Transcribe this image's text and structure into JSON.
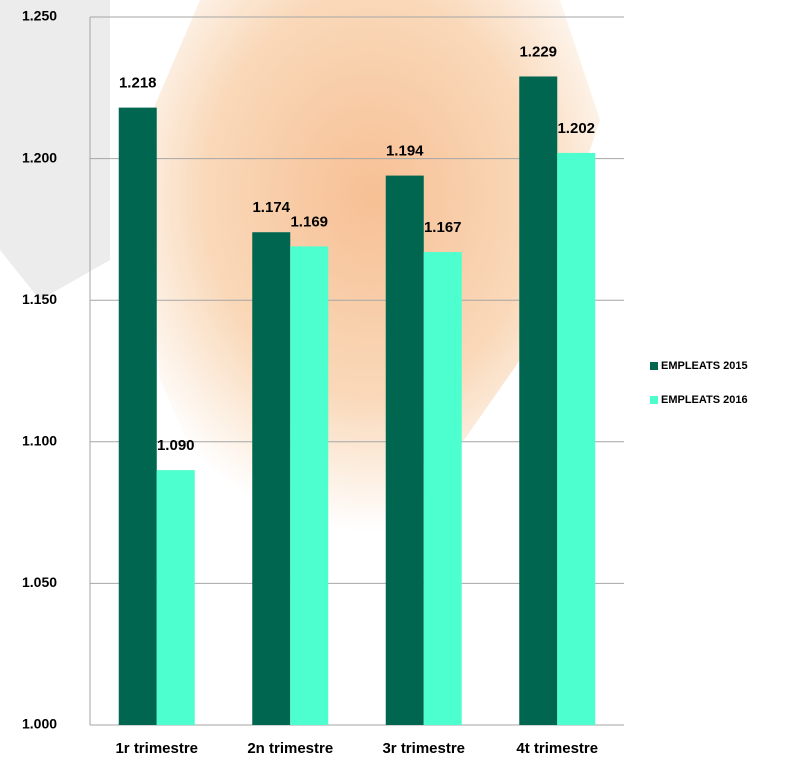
{
  "chart_data": {
    "type": "bar",
    "categories": [
      "1r trimestre",
      "2n trimestre",
      "3r trimestre",
      "4t trimestre"
    ],
    "series": [
      {
        "name": "EMPLEATS 2015",
        "color": "#006650",
        "values": [
          1.218,
          1.174,
          1.194,
          1.229
        ],
        "value_labels": [
          "1.218",
          "1.174",
          "1.194",
          "1.229"
        ]
      },
      {
        "name": "EMPLEATS 2016",
        "color": "#4dffcf",
        "values": [
          1.09,
          1.169,
          1.167,
          1.202
        ],
        "value_labels": [
          "1.090",
          "1.169",
          "1.167",
          "1.202"
        ]
      }
    ],
    "ylim": [
      1.0,
      1.25
    ],
    "yticks": [
      {
        "value": 1.0,
        "label": "1.000"
      },
      {
        "value": 1.05,
        "label": "1.050"
      },
      {
        "value": 1.1,
        "label": "1.100"
      },
      {
        "value": 1.15,
        "label": "1.150"
      },
      {
        "value": 1.2,
        "label": "1.200"
      },
      {
        "value": 1.25,
        "label": "1.250"
      }
    ],
    "grid": true,
    "legend": "right"
  }
}
